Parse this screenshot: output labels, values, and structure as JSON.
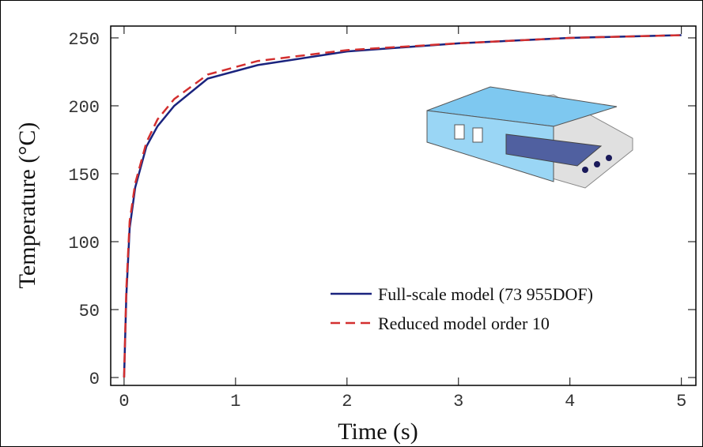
{
  "chart_data": {
    "type": "line",
    "x_label": "Time (s)",
    "y_label": "Temperature (°C)",
    "xlim": [
      -0.12,
      5.13
    ],
    "ylim": [
      -5.8,
      258.7
    ],
    "xticks": [
      0,
      1,
      2,
      3,
      4,
      5
    ],
    "yticks": [
      0,
      50,
      100,
      150,
      200,
      250
    ],
    "series": [
      {
        "name": "Full-scale model (73 955DOF)",
        "color": "#1a237e",
        "dash": false,
        "x": [
          0,
          0.02,
          0.05,
          0.1,
          0.2,
          0.3,
          0.45,
          0.75,
          1.2,
          2,
          3,
          4,
          5
        ],
        "values": [
          0,
          60,
          110,
          140,
          170,
          185,
          200,
          220,
          230,
          240,
          246,
          250,
          252
        ]
      },
      {
        "name": "Reduced model order 10",
        "color": "#d32f2f",
        "dash": true,
        "x": [
          0,
          0.02,
          0.05,
          0.1,
          0.2,
          0.3,
          0.45,
          0.75,
          1.2,
          2,
          3,
          4,
          5
        ],
        "values": [
          0,
          65,
          115,
          143,
          173,
          190,
          205,
          223,
          233,
          241,
          246,
          250,
          252
        ]
      }
    ]
  }
}
